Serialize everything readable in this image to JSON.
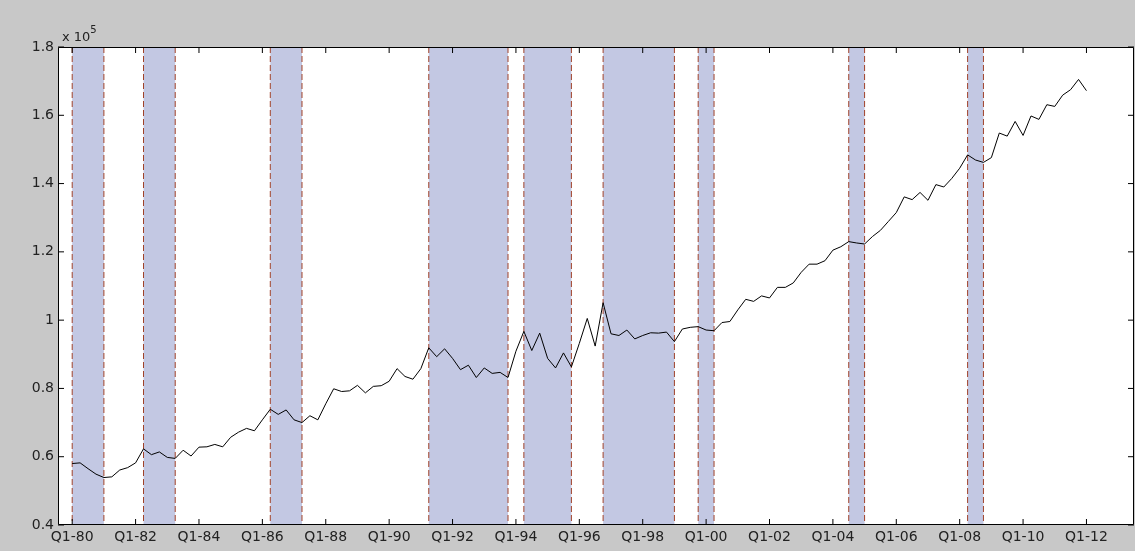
{
  "chart_data": {
    "type": "line",
    "annotations": [
      "x 10$^{5}$"
    ],
    "x": [
      "1980-01",
      "1980-04",
      "1980-07",
      "1980-10",
      "1981-01",
      "1981-04",
      "1981-07",
      "1981-10",
      "1982-01",
      "1982-04",
      "1982-07",
      "1982-10",
      "1983-01",
      "1983-04",
      "1983-07",
      "1983-10",
      "1984-01",
      "1984-04",
      "1984-07",
      "1984-10",
      "1985-01",
      "1985-04",
      "1985-07",
      "1985-10",
      "1986-01",
      "1986-04",
      "1986-07",
      "1986-10",
      "1987-01",
      "1987-04",
      "1987-07",
      "1987-10",
      "1988-01",
      "1988-04",
      "1988-07",
      "1988-10",
      "1989-01",
      "1989-04",
      "1989-07",
      "1989-10",
      "1990-01",
      "1990-04",
      "1990-07",
      "1990-10",
      "1991-01",
      "1991-04",
      "1991-07",
      "1991-10",
      "1992-01",
      "1992-04",
      "1992-07",
      "1992-10",
      "1993-01",
      "1993-04",
      "1993-07",
      "1993-10",
      "1994-01",
      "1994-04",
      "1994-07",
      "1994-10",
      "1995-01",
      "1995-04",
      "1995-07",
      "1995-10",
      "1996-01",
      "1996-04",
      "1996-07",
      "1996-10",
      "1997-01",
      "1997-04",
      "1997-07",
      "1997-10",
      "1998-01",
      "1998-04",
      "1998-07",
      "1998-10",
      "1999-01",
      "1999-04",
      "1999-07",
      "1999-10",
      "2000-01",
      "2000-04",
      "2000-07",
      "2000-10",
      "2001-01",
      "2001-04",
      "2001-07",
      "2001-10",
      "2002-01",
      "2002-04",
      "2002-07",
      "2002-10",
      "2003-01",
      "2003-04",
      "2003-07",
      "2003-10",
      "2004-01",
      "2004-04",
      "2004-07",
      "2004-10",
      "2005-01",
      "2005-04",
      "2005-07",
      "2005-10",
      "2006-01",
      "2006-04",
      "2006-07",
      "2006-10",
      "2007-01",
      "2007-04",
      "2007-07",
      "2007-10",
      "2008-01",
      "2008-04",
      "2008-07",
      "2008-10",
      "2009-01",
      "2009-04",
      "2009-07",
      "2009-10",
      "2010-01",
      "2010-04",
      "2010-07",
      "2010-10",
      "2011-01",
      "2011-04",
      "2011-07",
      "2011-10",
      "2012-01"
    ],
    "series": [
      {
        "color": "#000000",
        "values": [
          0.58,
          0.582,
          0.565,
          0.549,
          0.539,
          0.541,
          0.561,
          0.568,
          0.582,
          0.623,
          0.606,
          0.614,
          0.598,
          0.595,
          0.619,
          0.602,
          0.628,
          0.629,
          0.636,
          0.629,
          0.657,
          0.672,
          0.683,
          0.676,
          0.708,
          0.739,
          0.724,
          0.737,
          0.708,
          0.7,
          0.72,
          0.708,
          0.755,
          0.799,
          0.791,
          0.793,
          0.809,
          0.787,
          0.806,
          0.808,
          0.821,
          0.858,
          0.835,
          0.827,
          0.858,
          0.919,
          0.893,
          0.916,
          0.888,
          0.855,
          0.868,
          0.832,
          0.86,
          0.844,
          0.847,
          0.832,
          0.909,
          0.967,
          0.911,
          0.962,
          0.888,
          0.86,
          0.904,
          0.863,
          0.932,
          1.005,
          0.924,
          1.051,
          0.96,
          0.955,
          0.971,
          0.945,
          0.955,
          0.963,
          0.962,
          0.965,
          0.937,
          0.974,
          0.979,
          0.981,
          0.971,
          0.969,
          0.993,
          0.996,
          1.03,
          1.061,
          1.055,
          1.071,
          1.065,
          1.096,
          1.096,
          1.109,
          1.14,
          1.164,
          1.164,
          1.174,
          1.205,
          1.215,
          1.23,
          1.226,
          1.223,
          1.245,
          1.263,
          1.289,
          1.315,
          1.361,
          1.353,
          1.374,
          1.351,
          1.397,
          1.39,
          1.415,
          1.445,
          1.484,
          1.469,
          1.462,
          1.476,
          1.548,
          1.539,
          1.582,
          1.541,
          1.598,
          1.588,
          1.631,
          1.626,
          1.659,
          1.675,
          1.705,
          1.672
        ]
      }
    ],
    "xlim": [
      "1979-07-20",
      "2013-07"
    ],
    "xticks": [
      {
        "value": "1980-01",
        "label": "Q1-80"
      },
      {
        "value": "1982-01",
        "label": "Q1-82"
      },
      {
        "value": "1984-01",
        "label": "Q1-84"
      },
      {
        "value": "1986-01",
        "label": "Q1-86"
      },
      {
        "value": "1988-01",
        "label": "Q1-88"
      },
      {
        "value": "1990-01",
        "label": "Q1-90"
      },
      {
        "value": "1992-01",
        "label": "Q1-92"
      },
      {
        "value": "1994-01",
        "label": "Q1-94"
      },
      {
        "value": "1996-01",
        "label": "Q1-96"
      },
      {
        "value": "1998-01",
        "label": "Q1-98"
      },
      {
        "value": "2000-01",
        "label": "Q1-00"
      },
      {
        "value": "2002-01",
        "label": "Q1-02"
      },
      {
        "value": "2004-01",
        "label": "Q1-04"
      },
      {
        "value": "2006-01",
        "label": "Q1-06"
      },
      {
        "value": "2008-01",
        "label": "Q1-08"
      },
      {
        "value": "2010-01",
        "label": "Q1-10"
      },
      {
        "value": "2012-01",
        "label": "Q1-12"
      }
    ],
    "ylim": [
      0.4,
      1.8
    ],
    "yticks": [
      0.4,
      0.6,
      0.8,
      1,
      1.2,
      1.4,
      1.6,
      1.8
    ],
    "bands": [
      {
        "axis": "x",
        "from": "1980-01",
        "to": "1981-01",
        "color": "#c3c8e3"
      },
      {
        "axis": "x",
        "from": "1982-04",
        "to": "1983-04",
        "color": "#c3c8e3"
      },
      {
        "axis": "x",
        "from": "1986-04",
        "to": "1987-04",
        "color": "#c3c8e3"
      },
      {
        "axis": "x",
        "from": "1991-04",
        "to": "1993-10",
        "color": "#c3c8e3"
      },
      {
        "axis": "x",
        "from": "1994-04",
        "to": "1995-10",
        "color": "#c3c8e3"
      },
      {
        "axis": "x",
        "from": "1996-10",
        "to": "1999-01",
        "color": "#c3c8e3"
      },
      {
        "axis": "x",
        "from": "1999-10",
        "to": "2000-04",
        "color": "#c3c8e3"
      },
      {
        "axis": "x",
        "from": "2004-07",
        "to": "2005-01",
        "color": "#c3c8e3"
      },
      {
        "axis": "x",
        "from": "2008-04",
        "to": "2008-10",
        "color": "#c3c8e3"
      }
    ],
    "ref_lines": [
      {
        "axis": "x",
        "value": "1980-01",
        "color": "#a0422a",
        "line_style": "dashed"
      },
      {
        "axis": "x",
        "value": "1981-01",
        "color": "#a0422a",
        "line_style": "dashed"
      },
      {
        "axis": "x",
        "value": "1982-04",
        "color": "#a0422a",
        "line_style": "dashed"
      },
      {
        "axis": "x",
        "value": "1983-04",
        "color": "#a0422a",
        "line_style": "dashed"
      },
      {
        "axis": "x",
        "value": "1986-04",
        "color": "#a0422a",
        "line_style": "dashed"
      },
      {
        "axis": "x",
        "value": "1987-04",
        "color": "#a0422a",
        "line_style": "dashed"
      },
      {
        "axis": "x",
        "value": "1991-04",
        "color": "#a0422a",
        "line_style": "dashed"
      },
      {
        "axis": "x",
        "value": "1993-10",
        "color": "#a0422a",
        "line_style": "dashed"
      },
      {
        "axis": "x",
        "value": "1994-04",
        "color": "#a0422a",
        "line_style": "dashed"
      },
      {
        "axis": "x",
        "value": "1995-10",
        "color": "#a0422a",
        "line_style": "dashed"
      },
      {
        "axis": "x",
        "value": "1996-10",
        "color": "#a0422a",
        "line_style": "dashed"
      },
      {
        "axis": "x",
        "value": "1999-01",
        "color": "#a0422a",
        "line_style": "dashed"
      },
      {
        "axis": "x",
        "value": "1999-10",
        "color": "#a0422a",
        "line_style": "dashed"
      },
      {
        "axis": "x",
        "value": "2000-04",
        "color": "#a0422a",
        "line_style": "dashed"
      },
      {
        "axis": "x",
        "value": "2004-07",
        "color": "#a0422a",
        "line_style": "dashed"
      },
      {
        "axis": "x",
        "value": "2005-01",
        "color": "#a0422a",
        "line_style": "dashed"
      },
      {
        "axis": "x",
        "value": "2008-04",
        "color": "#a0422a",
        "line_style": "dashed"
      },
      {
        "axis": "x",
        "value": "2008-10",
        "color": "#a0422a",
        "line_style": "dashed"
      }
    ],
    "marker": "none",
    "line_style": "solid",
    "legend": false
  }
}
